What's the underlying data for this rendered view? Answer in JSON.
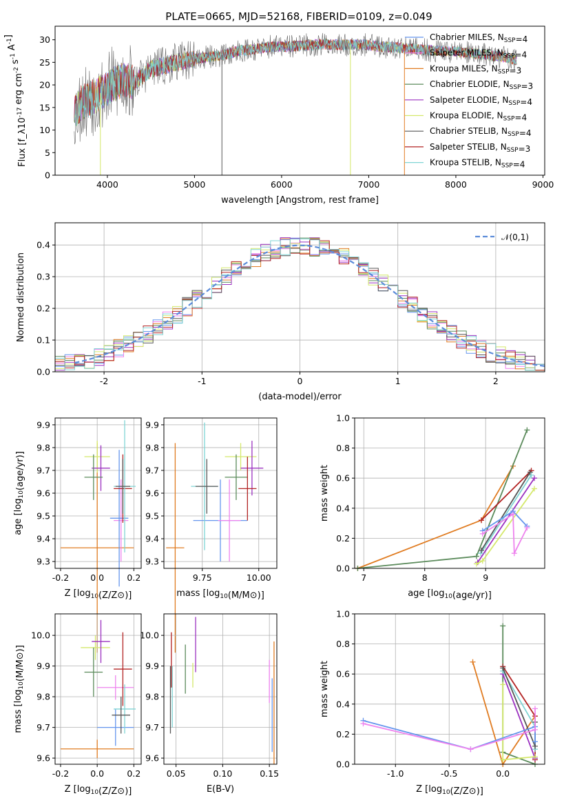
{
  "figure": {
    "title": "PLATE=0665, MJD=52168, FIBERID=0109, z=0.049"
  },
  "chart_data": [
    {
      "id": "spectrum",
      "type": "line",
      "xlabel": "wavelength [Angstrom, rest frame]",
      "ylabel": "Flux [f_λ10^-17 erg cm^-2 s^-1 A^-1]",
      "xlim": [
        3400,
        9020
      ],
      "ylim": [
        0,
        33
      ],
      "xticks": [
        4000,
        5000,
        6000,
        7000,
        8000,
        9000
      ],
      "yticks": [
        0,
        5,
        10,
        15,
        20,
        25,
        30
      ],
      "grid": false,
      "legend": "top-right",
      "continuum": [
        [
          3620,
          14
        ],
        [
          3700,
          16
        ],
        [
          3800,
          17
        ],
        [
          3900,
          18
        ],
        [
          4000,
          19
        ],
        [
          4100,
          20.5
        ],
        [
          4200,
          21
        ],
        [
          4300,
          20.5
        ],
        [
          4400,
          22
        ],
        [
          4500,
          23.5
        ],
        [
          4700,
          24.5
        ],
        [
          4900,
          25.5
        ],
        [
          5100,
          26
        ],
        [
          5300,
          26.5
        ],
        [
          5500,
          27.5
        ],
        [
          5700,
          28
        ],
        [
          5900,
          28.5
        ],
        [
          6100,
          28.5
        ],
        [
          6300,
          28.8
        ],
        [
          6500,
          29
        ],
        [
          6700,
          28.8
        ],
        [
          6900,
          29
        ],
        [
          7100,
          28.5
        ],
        [
          7300,
          28.3
        ],
        [
          7500,
          28
        ],
        [
          7800,
          27.5
        ],
        [
          8000,
          27.4
        ],
        [
          8200,
          27
        ],
        [
          8400,
          26.5
        ],
        [
          8600,
          26
        ],
        [
          8700,
          25.5
        ]
      ],
      "series": [
        {
          "name": "Chabrier MILES, N_SSP=4",
          "color": "#6495ed"
        },
        {
          "name": "Salpeter MILES, N_SSP=4",
          "color": "#ee82ee"
        },
        {
          "name": "Kroupa MILES, N_SSP=3",
          "color": "#e07b20"
        },
        {
          "name": "Chabrier ELODIE, N_SSP=3",
          "color": "#5a8a5a"
        },
        {
          "name": "Salpeter ELODIE, N_SSP=4",
          "color": "#9b30c0"
        },
        {
          "name": "Kroupa ELODIE, N_SSP=4",
          "color": "#d4e86a"
        },
        {
          "name": "Chabrier STELIB, N_SSP=4",
          "color": "#555555"
        },
        {
          "name": "Salpeter STELIB, N_SSP=3",
          "color": "#b22222"
        },
        {
          "name": "Kroupa STELIB, N_SSP=4",
          "color": "#7fd4d4"
        }
      ]
    },
    {
      "id": "residuals",
      "type": "histogram",
      "xlabel": "(data-model)/error",
      "ylabel": "Normed distribution",
      "xlim": [
        -2.5,
        2.5
      ],
      "ylim": [
        0,
        0.47
      ],
      "xticks": [
        -2,
        -1,
        0,
        1,
        2
      ],
      "yticks": [
        0.0,
        0.1,
        0.2,
        0.3,
        0.4
      ],
      "grid": true,
      "legend": "top-right",
      "reference": {
        "name": "𝒩(0,1)",
        "mean": 0,
        "sigma": 1,
        "color": "#5b8bd9"
      },
      "bin_width": 0.1
    },
    {
      "id": "age-vs-Z",
      "type": "scatter",
      "xlabel": "Z [log10(Z/Z⊙)]",
      "ylabel": "age  [log10(age/yr)]",
      "xlim": [
        -0.23,
        0.24
      ],
      "ylim": [
        9.27,
        9.93
      ],
      "xticks": [
        -0.2,
        0.0,
        0.2
      ],
      "yticks": [
        9.3,
        9.4,
        9.5,
        9.6,
        9.7,
        9.8,
        9.9
      ],
      "grid": true,
      "points": [
        {
          "x": 0.0,
          "y": 9.36,
          "ex": 0.2,
          "ey": 0.46,
          "color": "#e07b20"
        },
        {
          "x": 0.0,
          "y": 9.76,
          "ex": 0.07,
          "ey": 0.07,
          "color": "#d4e86a"
        },
        {
          "x": 0.02,
          "y": 9.71,
          "ex": 0.05,
          "ey": 0.1,
          "color": "#9b30c0"
        },
        {
          "x": -0.02,
          "y": 9.67,
          "ex": 0.05,
          "ey": 0.1,
          "color": "#5a8a5a"
        },
        {
          "x": 0.13,
          "y": 9.48,
          "ex": 0.04,
          "ey": 0.18,
          "color": "#ee82ee"
        },
        {
          "x": 0.12,
          "y": 9.49,
          "ex": 0.05,
          "ey": 0.3,
          "color": "#6495ed"
        },
        {
          "x": 0.14,
          "y": 9.62,
          "ex": 0.05,
          "ey": 0.15,
          "color": "#b22222"
        },
        {
          "x": 0.15,
          "y": 9.63,
          "ex": 0.06,
          "ey": 0.29,
          "color": "#7fd4d4"
        },
        {
          "x": 0.14,
          "y": 9.63,
          "ex": 0.04,
          "ey": 0.12,
          "color": "#555555"
        }
      ]
    },
    {
      "id": "age-vs-mass",
      "type": "scatter",
      "xlabel": "mass [log10(M/M⊙)]",
      "ylabel": "",
      "xlim": [
        9.58,
        10.08
      ],
      "ylim": [
        9.27,
        9.93
      ],
      "xticks": [
        9.75,
        10.0
      ],
      "yticks": [
        9.3,
        9.4,
        9.5,
        9.6,
        9.7,
        9.8,
        9.9
      ],
      "grid": true,
      "points": [
        {
          "x": 9.63,
          "y": 9.36,
          "ex": 0.04,
          "ey": 0.46,
          "color": "#e07b20"
        },
        {
          "x": 9.83,
          "y": 9.48,
          "ex": 0.12,
          "ey": 0.18,
          "color": "#6495ed"
        },
        {
          "x": 9.87,
          "y": 9.48,
          "ex": 0.05,
          "ey": 0.18,
          "color": "#ee82ee"
        },
        {
          "x": 9.92,
          "y": 9.76,
          "ex": 0.07,
          "ey": 0.06,
          "color": "#d4e86a"
        },
        {
          "x": 9.97,
          "y": 9.71,
          "ex": 0.05,
          "ey": 0.12,
          "color": "#9b30c0"
        },
        {
          "x": 9.9,
          "y": 9.67,
          "ex": 0.05,
          "ey": 0.1,
          "color": "#5a8a5a"
        },
        {
          "x": 9.95,
          "y": 9.62,
          "ex": 0.04,
          "ey": 0.14,
          "color": "#b22222"
        },
        {
          "x": 9.76,
          "y": 9.63,
          "ex": 0.06,
          "ey": 0.28,
          "color": "#7fd4d4"
        },
        {
          "x": 9.77,
          "y": 9.63,
          "ex": 0.05,
          "ey": 0.12,
          "color": "#555555"
        }
      ]
    },
    {
      "id": "weight-vs-age",
      "type": "line",
      "xlabel": "age  [log10(age/yr)]",
      "ylabel": "mass weight",
      "xlim": [
        6.85,
        9.97
      ],
      "ylim": [
        0,
        1.0
      ],
      "xticks": [
        7,
        8,
        9
      ],
      "yticks": [
        0.0,
        0.2,
        0.4,
        0.6,
        0.8,
        1.0
      ],
      "grid": true,
      "series": [
        {
          "color": "#e07b20",
          "x": [
            6.9,
            8.93,
            9.45
          ],
          "y": [
            0.0,
            0.32,
            0.68
          ]
        },
        {
          "color": "#5a8a5a",
          "x": [
            6.9,
            8.85,
            9.68
          ],
          "y": [
            0.0,
            0.08,
            0.92
          ]
        },
        {
          "color": "#b22222",
          "x": [
            8.93,
            9.75
          ],
          "y": [
            0.32,
            0.65
          ]
        },
        {
          "color": "#9b30c0",
          "x": [
            8.87,
            9.8
          ],
          "y": [
            0.04,
            0.6
          ]
        },
        {
          "color": "#d4e86a",
          "x": [
            8.85,
            8.95,
            9.8
          ],
          "y": [
            0.03,
            0.05,
            0.53
          ]
        },
        {
          "color": "#7fd4d4",
          "x": [
            8.92,
            9.75
          ],
          "y": [
            0.1,
            0.62
          ]
        },
        {
          "color": "#555555",
          "x": [
            8.93,
            9.73
          ],
          "y": [
            0.12,
            0.64
          ]
        },
        {
          "color": "#6495ed",
          "x": [
            8.95,
            9.45,
            9.68
          ],
          "y": [
            0.25,
            0.38,
            0.28
          ]
        },
        {
          "color": "#ee82ee",
          "x": [
            8.95,
            9.45,
            9.47,
            9.68
          ],
          "y": [
            0.23,
            0.36,
            0.1,
            0.27
          ]
        }
      ]
    },
    {
      "id": "mass-vs-Z",
      "type": "scatter",
      "xlabel": "Z [log10(Z/Z⊙)]",
      "ylabel": "mass [log10(M/M⊙)]",
      "xlim": [
        -0.23,
        0.24
      ],
      "ylim": [
        9.58,
        10.07
      ],
      "xticks": [
        -0.2,
        0.0,
        0.2
      ],
      "yticks": [
        9.6,
        9.7,
        9.8,
        9.9,
        10.0
      ],
      "grid": true,
      "points": [
        {
          "x": 0.0,
          "y": 9.63,
          "ex": 0.2,
          "ey": 0.03,
          "color": "#e07b20"
        },
        {
          "x": 0.1,
          "y": 9.7,
          "ex": 0.1,
          "ey": 0.06,
          "color": "#6495ed"
        },
        {
          "x": 0.1,
          "y": 9.83,
          "ex": 0.1,
          "ey": 0.04,
          "color": "#ee82ee"
        },
        {
          "x": -0.01,
          "y": 9.96,
          "ex": 0.08,
          "ey": 0.04,
          "color": "#d4e86a"
        },
        {
          "x": 0.02,
          "y": 9.98,
          "ex": 0.05,
          "ey": 0.07,
          "color": "#9b30c0"
        },
        {
          "x": -0.02,
          "y": 9.88,
          "ex": 0.05,
          "ey": 0.08,
          "color": "#5a8a5a"
        },
        {
          "x": 0.14,
          "y": 9.89,
          "ex": 0.05,
          "ey": 0.12,
          "color": "#b22222"
        },
        {
          "x": 0.15,
          "y": 9.76,
          "ex": 0.06,
          "ey": 0.08,
          "color": "#7fd4d4"
        },
        {
          "x": 0.13,
          "y": 9.74,
          "ex": 0.05,
          "ey": 0.06,
          "color": "#555555"
        }
      ]
    },
    {
      "id": "mass-vs-EBV",
      "type": "scatter",
      "xlabel": "E(B-V)",
      "ylabel": "",
      "xlim": [
        0.037,
        0.158
      ],
      "ylim": [
        9.58,
        10.07
      ],
      "xticks": [
        0.05,
        0.1,
        0.15
      ],
      "yticks": [
        9.6,
        9.7,
        9.8,
        9.9,
        10.0
      ],
      "grid": true,
      "points": [
        {
          "x": 0.045,
          "y": 9.92,
          "ey": 0.09,
          "color": "#b22222"
        },
        {
          "x": 0.044,
          "y": 9.79,
          "ey": 0.11,
          "color": "#555555"
        },
        {
          "x": 0.046,
          "y": 9.8,
          "ey": 0.1,
          "color": "#7fd4d4"
        },
        {
          "x": 0.06,
          "y": 9.89,
          "ey": 0.08,
          "color": "#5a8a5a"
        },
        {
          "x": 0.068,
          "y": 9.87,
          "ey": 0.04,
          "color": "#d4e86a"
        },
        {
          "x": 0.071,
          "y": 9.97,
          "ey": 0.09,
          "color": "#9b30c0"
        },
        {
          "x": 0.15,
          "y": 9.85,
          "ey": 0.07,
          "color": "#ee82ee"
        },
        {
          "x": 0.153,
          "y": 9.74,
          "ey": 0.12,
          "color": "#6495ed"
        },
        {
          "x": 0.155,
          "y": 9.78,
          "ey": 0.2,
          "color": "#e07b20"
        }
      ]
    },
    {
      "id": "weight-vs-Z",
      "type": "line",
      "xlabel": "Z [log10(Z/Z⊙)]",
      "ylabel": "mass weight",
      "xlim": [
        -1.38,
        0.39
      ],
      "ylim": [
        0,
        1.0
      ],
      "xticks": [
        -1.0,
        -0.5,
        0.0
      ],
      "yticks": [
        0.0,
        0.2,
        0.4,
        0.6,
        0.8,
        1.0
      ],
      "grid": true,
      "series": [
        {
          "color": "#e07b20",
          "x": [
            -0.28,
            0.0,
            0.3
          ],
          "y": [
            0.68,
            0.0,
            0.32
          ]
        },
        {
          "color": "#5a8a5a",
          "x": [
            0.0,
            0.0,
            0.3
          ],
          "y": [
            0.92,
            0.08,
            0.0
          ]
        },
        {
          "color": "#b22222",
          "x": [
            0.0,
            0.3,
            0.3
          ],
          "y": [
            0.65,
            0.32,
            0.03
          ]
        },
        {
          "color": "#9b30c0",
          "x": [
            0.0,
            0.3
          ],
          "y": [
            0.6,
            0.04
          ]
        },
        {
          "color": "#d4e86a",
          "x": [
            0.0,
            0.0,
            0.3
          ],
          "y": [
            0.53,
            0.03,
            0.05
          ]
        },
        {
          "color": "#7fd4d4",
          "x": [
            0.0,
            0.3,
            0.3
          ],
          "y": [
            0.62,
            0.25,
            0.1
          ]
        },
        {
          "color": "#555555",
          "x": [
            0.0,
            0.3,
            0.3
          ],
          "y": [
            0.64,
            0.12,
            0.28
          ]
        },
        {
          "color": "#6495ed",
          "x": [
            -1.3,
            -0.3,
            0.3,
            0.3
          ],
          "y": [
            0.29,
            0.1,
            0.25,
            0.15
          ]
        },
        {
          "color": "#ee82ee",
          "x": [
            -1.3,
            -0.3,
            0.3,
            0.3
          ],
          "y": [
            0.27,
            0.1,
            0.23,
            0.37
          ]
        }
      ]
    }
  ]
}
